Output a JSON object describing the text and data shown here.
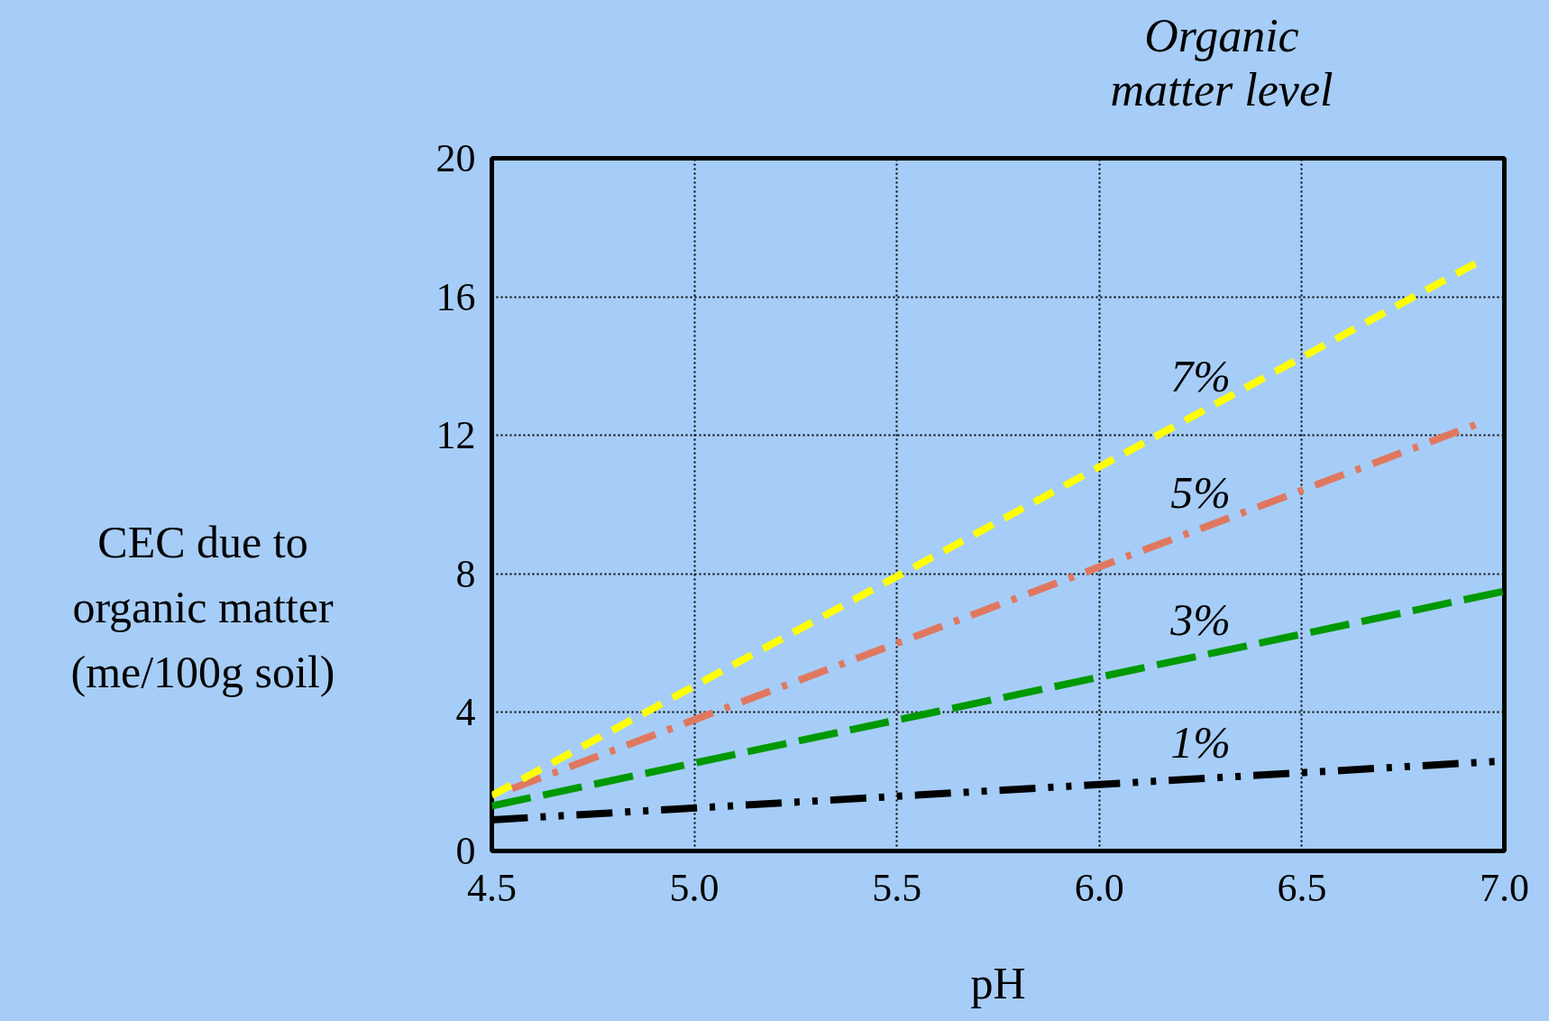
{
  "chart_data": {
    "type": "line",
    "xlabel": "pH",
    "ylabel": "CEC due to\norganic matter\n(me/100g soil)",
    "legend_title": "Organic\nmatter level",
    "xlim": [
      4.5,
      7.0
    ],
    "ylim": [
      0,
      20
    ],
    "xticks": [
      {
        "value": 4.5,
        "label": "4.5"
      },
      {
        "value": 5.0,
        "label": "5.0"
      },
      {
        "value": 5.5,
        "label": "5.5"
      },
      {
        "value": 6.0,
        "label": "6.0"
      },
      {
        "value": 6.5,
        "label": "6.5"
      },
      {
        "value": 7.0,
        "label": "7.0"
      }
    ],
    "yticks": [
      0,
      4,
      8,
      12,
      16,
      20
    ],
    "grid": true,
    "legend": false,
    "series": [
      {
        "name": "1%",
        "color": "#000000",
        "line_style": "dashdotdot",
        "x": [
          4.5,
          7.0
        ],
        "values": [
          0.9,
          2.6
        ]
      },
      {
        "name": "3%",
        "color": "#009900",
        "line_style": "longdash",
        "x": [
          4.5,
          7.0
        ],
        "values": [
          1.3,
          7.5
        ]
      },
      {
        "name": "5%",
        "color": "#e07860",
        "line_style": "dashdot",
        "x": [
          4.55,
          6.95
        ],
        "values": [
          1.8,
          12.4
        ]
      },
      {
        "name": "7%",
        "color": "#ffff00",
        "line_style": "dashed",
        "x": [
          4.5,
          6.95
        ],
        "values": [
          1.6,
          17.1
        ]
      }
    ]
  }
}
